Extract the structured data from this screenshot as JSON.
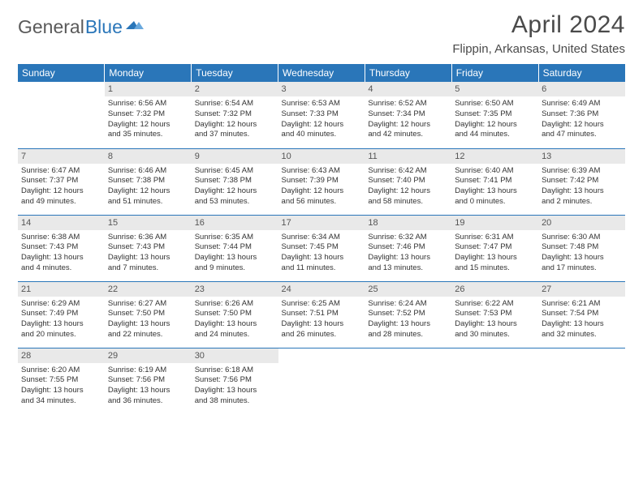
{
  "logo": {
    "text1": "General",
    "text2": "Blue"
  },
  "title": "April 2024",
  "location": "Flippin, Arkansas, United States",
  "colors": {
    "brand_blue": "#2a76b9",
    "header_text_gray": "#4a4a4a",
    "daynum_bg": "#e9e9e9",
    "body_text": "#333333"
  },
  "weekdays": [
    "Sunday",
    "Monday",
    "Tuesday",
    "Wednesday",
    "Thursday",
    "Friday",
    "Saturday"
  ],
  "weeks": [
    [
      null,
      {
        "n": "1",
        "sr": "Sunrise: 6:56 AM",
        "ss": "Sunset: 7:32 PM",
        "d1": "Daylight: 12 hours",
        "d2": "and 35 minutes."
      },
      {
        "n": "2",
        "sr": "Sunrise: 6:54 AM",
        "ss": "Sunset: 7:32 PM",
        "d1": "Daylight: 12 hours",
        "d2": "and 37 minutes."
      },
      {
        "n": "3",
        "sr": "Sunrise: 6:53 AM",
        "ss": "Sunset: 7:33 PM",
        "d1": "Daylight: 12 hours",
        "d2": "and 40 minutes."
      },
      {
        "n": "4",
        "sr": "Sunrise: 6:52 AM",
        "ss": "Sunset: 7:34 PM",
        "d1": "Daylight: 12 hours",
        "d2": "and 42 minutes."
      },
      {
        "n": "5",
        "sr": "Sunrise: 6:50 AM",
        "ss": "Sunset: 7:35 PM",
        "d1": "Daylight: 12 hours",
        "d2": "and 44 minutes."
      },
      {
        "n": "6",
        "sr": "Sunrise: 6:49 AM",
        "ss": "Sunset: 7:36 PM",
        "d1": "Daylight: 12 hours",
        "d2": "and 47 minutes."
      }
    ],
    [
      {
        "n": "7",
        "sr": "Sunrise: 6:47 AM",
        "ss": "Sunset: 7:37 PM",
        "d1": "Daylight: 12 hours",
        "d2": "and 49 minutes."
      },
      {
        "n": "8",
        "sr": "Sunrise: 6:46 AM",
        "ss": "Sunset: 7:38 PM",
        "d1": "Daylight: 12 hours",
        "d2": "and 51 minutes."
      },
      {
        "n": "9",
        "sr": "Sunrise: 6:45 AM",
        "ss": "Sunset: 7:38 PM",
        "d1": "Daylight: 12 hours",
        "d2": "and 53 minutes."
      },
      {
        "n": "10",
        "sr": "Sunrise: 6:43 AM",
        "ss": "Sunset: 7:39 PM",
        "d1": "Daylight: 12 hours",
        "d2": "and 56 minutes."
      },
      {
        "n": "11",
        "sr": "Sunrise: 6:42 AM",
        "ss": "Sunset: 7:40 PM",
        "d1": "Daylight: 12 hours",
        "d2": "and 58 minutes."
      },
      {
        "n": "12",
        "sr": "Sunrise: 6:40 AM",
        "ss": "Sunset: 7:41 PM",
        "d1": "Daylight: 13 hours",
        "d2": "and 0 minutes."
      },
      {
        "n": "13",
        "sr": "Sunrise: 6:39 AM",
        "ss": "Sunset: 7:42 PM",
        "d1": "Daylight: 13 hours",
        "d2": "and 2 minutes."
      }
    ],
    [
      {
        "n": "14",
        "sr": "Sunrise: 6:38 AM",
        "ss": "Sunset: 7:43 PM",
        "d1": "Daylight: 13 hours",
        "d2": "and 4 minutes."
      },
      {
        "n": "15",
        "sr": "Sunrise: 6:36 AM",
        "ss": "Sunset: 7:43 PM",
        "d1": "Daylight: 13 hours",
        "d2": "and 7 minutes."
      },
      {
        "n": "16",
        "sr": "Sunrise: 6:35 AM",
        "ss": "Sunset: 7:44 PM",
        "d1": "Daylight: 13 hours",
        "d2": "and 9 minutes."
      },
      {
        "n": "17",
        "sr": "Sunrise: 6:34 AM",
        "ss": "Sunset: 7:45 PM",
        "d1": "Daylight: 13 hours",
        "d2": "and 11 minutes."
      },
      {
        "n": "18",
        "sr": "Sunrise: 6:32 AM",
        "ss": "Sunset: 7:46 PM",
        "d1": "Daylight: 13 hours",
        "d2": "and 13 minutes."
      },
      {
        "n": "19",
        "sr": "Sunrise: 6:31 AM",
        "ss": "Sunset: 7:47 PM",
        "d1": "Daylight: 13 hours",
        "d2": "and 15 minutes."
      },
      {
        "n": "20",
        "sr": "Sunrise: 6:30 AM",
        "ss": "Sunset: 7:48 PM",
        "d1": "Daylight: 13 hours",
        "d2": "and 17 minutes."
      }
    ],
    [
      {
        "n": "21",
        "sr": "Sunrise: 6:29 AM",
        "ss": "Sunset: 7:49 PM",
        "d1": "Daylight: 13 hours",
        "d2": "and 20 minutes."
      },
      {
        "n": "22",
        "sr": "Sunrise: 6:27 AM",
        "ss": "Sunset: 7:50 PM",
        "d1": "Daylight: 13 hours",
        "d2": "and 22 minutes."
      },
      {
        "n": "23",
        "sr": "Sunrise: 6:26 AM",
        "ss": "Sunset: 7:50 PM",
        "d1": "Daylight: 13 hours",
        "d2": "and 24 minutes."
      },
      {
        "n": "24",
        "sr": "Sunrise: 6:25 AM",
        "ss": "Sunset: 7:51 PM",
        "d1": "Daylight: 13 hours",
        "d2": "and 26 minutes."
      },
      {
        "n": "25",
        "sr": "Sunrise: 6:24 AM",
        "ss": "Sunset: 7:52 PM",
        "d1": "Daylight: 13 hours",
        "d2": "and 28 minutes."
      },
      {
        "n": "26",
        "sr": "Sunrise: 6:22 AM",
        "ss": "Sunset: 7:53 PM",
        "d1": "Daylight: 13 hours",
        "d2": "and 30 minutes."
      },
      {
        "n": "27",
        "sr": "Sunrise: 6:21 AM",
        "ss": "Sunset: 7:54 PM",
        "d1": "Daylight: 13 hours",
        "d2": "and 32 minutes."
      }
    ],
    [
      {
        "n": "28",
        "sr": "Sunrise: 6:20 AM",
        "ss": "Sunset: 7:55 PM",
        "d1": "Daylight: 13 hours",
        "d2": "and 34 minutes."
      },
      {
        "n": "29",
        "sr": "Sunrise: 6:19 AM",
        "ss": "Sunset: 7:56 PM",
        "d1": "Daylight: 13 hours",
        "d2": "and 36 minutes."
      },
      {
        "n": "30",
        "sr": "Sunrise: 6:18 AM",
        "ss": "Sunset: 7:56 PM",
        "d1": "Daylight: 13 hours",
        "d2": "and 38 minutes."
      },
      null,
      null,
      null,
      null
    ]
  ]
}
